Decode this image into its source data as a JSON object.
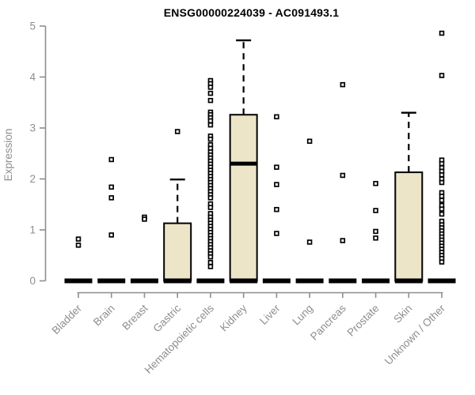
{
  "chart_data": {
    "type": "boxplot",
    "title": "ENSG00000224039 - AC091493.1",
    "ylabel": "Expression",
    "xlabel": "",
    "ylim": [
      0,
      5
    ],
    "yticks": [
      0,
      1,
      2,
      3,
      4,
      5
    ],
    "grid": false,
    "legend": "none",
    "colors": {
      "box_fill": "#ece5c8",
      "box_stroke": "#000000",
      "axis": "#8e8e8e",
      "tick_label": "#8e8e8e",
      "title": "#000000",
      "background": "#ffffff"
    },
    "categories": [
      "Bladder",
      "Brain",
      "Breast",
      "Gastric",
      "Hematopoietic cells",
      "Kidney",
      "Liver",
      "Lung",
      "Pancreas",
      "Prostate",
      "Skin",
      "Unknown / Other"
    ],
    "series": [
      {
        "category": "Bladder",
        "q1": 0,
        "median": 0,
        "q3": 0,
        "whisker_high": 0,
        "outliers": [
          0.82,
          0.7
        ]
      },
      {
        "category": "Brain",
        "q1": 0,
        "median": 0,
        "q3": 0,
        "whisker_high": 0,
        "outliers": [
          2.38,
          1.84,
          1.63,
          0.9
        ]
      },
      {
        "category": "Breast",
        "q1": 0,
        "median": 0,
        "q3": 0,
        "whisker_high": 0,
        "outliers": [
          1.25,
          1.21
        ]
      },
      {
        "category": "Gastric",
        "q1": 0,
        "median": 0,
        "q3": 1.13,
        "whisker_high": 1.99,
        "outliers": [
          2.93
        ]
      },
      {
        "category": "Hematopoietic cells",
        "q1": 0,
        "median": 0,
        "q3": 0,
        "whisker_high": 0,
        "outliers": [
          3.93,
          3.87,
          3.8,
          3.68,
          3.54,
          3.31,
          3.26,
          3.2,
          3.14,
          3.06,
          2.84,
          2.78,
          2.67,
          2.6,
          2.53,
          2.47,
          2.41,
          2.35,
          2.29,
          2.23,
          2.17,
          2.11,
          2.05,
          1.99,
          1.93,
          1.87,
          1.81,
          1.75,
          1.69,
          1.63,
          1.51,
          1.44,
          1.32,
          1.25,
          1.19,
          1.13,
          1.07,
          1.01,
          0.95,
          0.89,
          0.83,
          0.77,
          0.71,
          0.65,
          0.59,
          0.53,
          0.47,
          0.36,
          0.28
        ]
      },
      {
        "category": "Kidney",
        "q1": 0,
        "median": 2.3,
        "q3": 3.26,
        "whisker_high": 4.72,
        "outliers": []
      },
      {
        "category": "Liver",
        "q1": 0,
        "median": 0,
        "q3": 0,
        "whisker_high": 0,
        "outliers": [
          3.22,
          2.23,
          1.89,
          1.4,
          0.93
        ]
      },
      {
        "category": "Lung",
        "q1": 0,
        "median": 0,
        "q3": 0,
        "whisker_high": 0,
        "outliers": [
          2.74,
          0.76
        ]
      },
      {
        "category": "Pancreas",
        "q1": 0,
        "median": 0,
        "q3": 0,
        "whisker_high": 0,
        "outliers": [
          3.85,
          2.07,
          0.79
        ]
      },
      {
        "category": "Prostate",
        "q1": 0,
        "median": 0,
        "q3": 0,
        "whisker_high": 0,
        "outliers": [
          1.91,
          1.38,
          0.97,
          0.84
        ]
      },
      {
        "category": "Skin",
        "q1": 0,
        "median": 0,
        "q3": 2.13,
        "whisker_high": 3.3,
        "outliers": []
      },
      {
        "category": "Unknown / Other",
        "q1": 0,
        "median": 0,
        "q3": 0,
        "whisker_high": 0,
        "outliers": [
          4.86,
          4.03,
          2.37,
          2.3,
          2.22,
          2.15,
          2.08,
          2.0,
          1.93,
          1.73,
          1.66,
          1.58,
          1.48,
          1.41,
          1.31,
          1.17,
          1.1,
          1.04,
          0.98,
          0.92,
          0.86,
          0.8,
          0.74,
          0.68,
          0.62,
          0.56,
          0.5,
          0.44,
          0.37
        ]
      }
    ]
  }
}
